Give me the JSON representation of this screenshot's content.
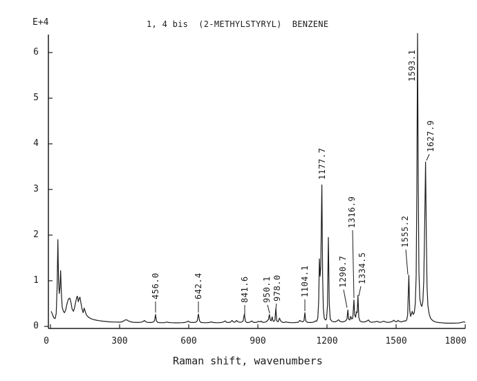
{
  "window": {
    "background": "#ffffff",
    "ink_color": "#1c1c1c"
  },
  "chart_data": {
    "type": "line",
    "title": "1, 4 bis  (2-METHYLSTYRYL)  BENZENE",
    "xlabel": "Raman shift, wavenumbers",
    "y_scale_label": "E+4",
    "xlim": [
      0,
      1810
    ],
    "ylim": [
      0,
      6.45
    ],
    "x_ticks": [
      0,
      300,
      600,
      900,
      1200,
      1500,
      1800
    ],
    "x_tick_dx": [
      -6,
      0,
      0,
      0,
      0,
      0,
      -14
    ],
    "y_ticks": [
      0,
      1,
      2,
      3,
      4,
      5,
      6
    ],
    "grid": false,
    "legend": "none",
    "peak_labels": [
      {
        "text": "456.0",
        "wn": 456.0,
        "value": 0.26,
        "dx": 0,
        "bottom": 433,
        "leader": [
          225,
          436,
          225,
          452
        ]
      },
      {
        "text": "642.4",
        "wn": 642.4,
        "value": 0.27,
        "dx": 0,
        "bottom": 433,
        "leader": [
          287,
          436,
          287,
          452
        ]
      },
      {
        "text": "841.6",
        "wn": 841.6,
        "value": 0.27,
        "dx": 0,
        "bottom": 438,
        "leader": [
          354,
          441,
          354,
          455
        ]
      },
      {
        "text": "950.1",
        "wn": 950.1,
        "value": 0.26,
        "dx": -4,
        "bottom": 438,
        "leader": [
          387,
          441,
          390,
          453
        ]
      },
      {
        "text": "978.0",
        "wn": 978.0,
        "value": 0.4,
        "dx": 2,
        "bottom": 436,
        "leader": [
          400,
          439,
          399,
          447
        ]
      },
      {
        "text": "1104.1",
        "wn": 1104.1,
        "value": 0.3,
        "dx": 0,
        "bottom": 430,
        "leader": [
          441,
          433,
          441,
          450
        ]
      },
      {
        "text": "1177.7",
        "wn": 1177.7,
        "value": 3.1,
        "dx": 0,
        "bottom": 260,
        "leader": null
      },
      {
        "text": "1290.7",
        "wn": 1290.7,
        "value": 0.36,
        "dx": -7,
        "bottom": 416,
        "leader": [
          497,
          419,
          502,
          445
        ]
      },
      {
        "text": "1316.9",
        "wn": 1316.9,
        "value": 0.58,
        "dx": -3,
        "bottom": 330,
        "leader": [
          510,
          333,
          512,
          431
        ]
      },
      {
        "text": "1334.5",
        "wn": 1334.5,
        "value": 0.68,
        "dx": 6,
        "bottom": 411,
        "leader": [
          522,
          414,
          519,
          428
        ]
      },
      {
        "text": "1555.2",
        "wn": 1555.2,
        "value": 1.12,
        "dx": -5,
        "bottom": 358,
        "leader": [
          587,
          361,
          590,
          397
        ]
      },
      {
        "text": "1593.1",
        "wn": 1593.1,
        "value": 6.42,
        "dx": -8,
        "bottom": 118,
        "leader": null
      },
      {
        "text": "1627.9",
        "wn": 1627.9,
        "value": 3.6,
        "dx": 7,
        "bottom": 220,
        "leader": [
          621,
          223,
          617,
          232
        ]
      }
    ],
    "series": [
      {
        "name": "raman-intensity",
        "color": "#1c1c1c",
        "points": [
          [
            3,
            0.33
          ],
          [
            8,
            0.27
          ],
          [
            14,
            0.19
          ],
          [
            20,
            0.17
          ],
          [
            25,
            0.28
          ],
          [
            29,
            0.9
          ],
          [
            32,
            1.9
          ],
          [
            35,
            1.0
          ],
          [
            38,
            0.72
          ],
          [
            41,
            0.85
          ],
          [
            44,
            1.22
          ],
          [
            47,
            0.75
          ],
          [
            51,
            0.42
          ],
          [
            56,
            0.33
          ],
          [
            61,
            0.3
          ],
          [
            66,
            0.36
          ],
          [
            72,
            0.5
          ],
          [
            78,
            0.6
          ],
          [
            84,
            0.62
          ],
          [
            89,
            0.52
          ],
          [
            94,
            0.38
          ],
          [
            100,
            0.33
          ],
          [
            105,
            0.42
          ],
          [
            110,
            0.55
          ],
          [
            114,
            0.64
          ],
          [
            117,
            0.66
          ],
          [
            121,
            0.54
          ],
          [
            125,
            0.62
          ],
          [
            128,
            0.64
          ],
          [
            132,
            0.52
          ],
          [
            137,
            0.38
          ],
          [
            142,
            0.3
          ],
          [
            146,
            0.4
          ],
          [
            150,
            0.34
          ],
          [
            156,
            0.25
          ],
          [
            165,
            0.2
          ],
          [
            172,
            0.18
          ],
          [
            180,
            0.16
          ],
          [
            190,
            0.145
          ],
          [
            200,
            0.135
          ],
          [
            212,
            0.125
          ],
          [
            225,
            0.115
          ],
          [
            240,
            0.108
          ],
          [
            255,
            0.1
          ],
          [
            270,
            0.095
          ],
          [
            285,
            0.095
          ],
          [
            300,
            0.092
          ],
          [
            312,
            0.1
          ],
          [
            322,
            0.135
          ],
          [
            330,
            0.145
          ],
          [
            338,
            0.12
          ],
          [
            348,
            0.1
          ],
          [
            360,
            0.09
          ],
          [
            375,
            0.085
          ],
          [
            390,
            0.09
          ],
          [
            400,
            0.1
          ],
          [
            408,
            0.13
          ],
          [
            413,
            0.1
          ],
          [
            425,
            0.085
          ],
          [
            438,
            0.085
          ],
          [
            448,
            0.1
          ],
          [
            452,
            0.13
          ],
          [
            456,
            0.26
          ],
          [
            460,
            0.12
          ],
          [
            466,
            0.085
          ],
          [
            480,
            0.08
          ],
          [
            495,
            0.08
          ],
          [
            505,
            0.095
          ],
          [
            512,
            0.085
          ],
          [
            525,
            0.08
          ],
          [
            540,
            0.078
          ],
          [
            555,
            0.078
          ],
          [
            570,
            0.08
          ],
          [
            582,
            0.085
          ],
          [
            592,
            0.1
          ],
          [
            598,
            0.115
          ],
          [
            605,
            0.09
          ],
          [
            618,
            0.085
          ],
          [
            630,
            0.09
          ],
          [
            637,
            0.12
          ],
          [
            642,
            0.27
          ],
          [
            647,
            0.12
          ],
          [
            653,
            0.085
          ],
          [
            665,
            0.08
          ],
          [
            678,
            0.08
          ],
          [
            690,
            0.085
          ],
          [
            698,
            0.1
          ],
          [
            705,
            0.085
          ],
          [
            718,
            0.08
          ],
          [
            730,
            0.08
          ],
          [
            742,
            0.085
          ],
          [
            752,
            0.1
          ],
          [
            758,
            0.12
          ],
          [
            764,
            0.09
          ],
          [
            772,
            0.085
          ],
          [
            780,
            0.09
          ],
          [
            788,
            0.13
          ],
          [
            793,
            0.1
          ],
          [
            800,
            0.09
          ],
          [
            808,
            0.13
          ],
          [
            814,
            0.1
          ],
          [
            822,
            0.09
          ],
          [
            830,
            0.095
          ],
          [
            836,
            0.12
          ],
          [
            841.6,
            0.27
          ],
          [
            846,
            0.11
          ],
          [
            852,
            0.085
          ],
          [
            860,
            0.085
          ],
          [
            868,
            0.1
          ],
          [
            874,
            0.12
          ],
          [
            880,
            0.09
          ],
          [
            888,
            0.085
          ],
          [
            895,
            0.09
          ],
          [
            902,
            0.11
          ],
          [
            908,
            0.1
          ],
          [
            915,
            0.115
          ],
          [
            920,
            0.09
          ],
          [
            928,
            0.09
          ],
          [
            936,
            0.1
          ],
          [
            942,
            0.13
          ],
          [
            946,
            0.15
          ],
          [
            950.1,
            0.26
          ],
          [
            954,
            0.14
          ],
          [
            958,
            0.12
          ],
          [
            962,
            0.21
          ],
          [
            966,
            0.12
          ],
          [
            970,
            0.11
          ],
          [
            974,
            0.14
          ],
          [
            978,
            0.4
          ],
          [
            982,
            0.12
          ],
          [
            988,
            0.1
          ],
          [
            994,
            0.18
          ],
          [
            999,
            0.12
          ],
          [
            1006,
            0.09
          ],
          [
            1014,
            0.085
          ],
          [
            1022,
            0.1
          ],
          [
            1028,
            0.09
          ],
          [
            1036,
            0.085
          ],
          [
            1045,
            0.08
          ],
          [
            1055,
            0.08
          ],
          [
            1065,
            0.085
          ],
          [
            1075,
            0.09
          ],
          [
            1082,
            0.13
          ],
          [
            1088,
            0.11
          ],
          [
            1094,
            0.1
          ],
          [
            1100,
            0.12
          ],
          [
            1104.1,
            0.3
          ],
          [
            1108,
            0.12
          ],
          [
            1114,
            0.09
          ],
          [
            1122,
            0.085
          ],
          [
            1130,
            0.085
          ],
          [
            1138,
            0.09
          ],
          [
            1145,
            0.1
          ],
          [
            1150,
            0.12
          ],
          [
            1155,
            0.11
          ],
          [
            1160,
            0.18
          ],
          [
            1164,
            0.55
          ],
          [
            1167,
            1.48
          ],
          [
            1170,
            1.1
          ],
          [
            1173,
            1.3
          ],
          [
            1177.7,
            3.1
          ],
          [
            1181,
            1.1
          ],
          [
            1184,
            0.4
          ],
          [
            1188,
            0.18
          ],
          [
            1193,
            0.14
          ],
          [
            1198,
            0.16
          ],
          [
            1202,
            0.45
          ],
          [
            1206,
            1.95
          ],
          [
            1210,
            0.5
          ],
          [
            1214,
            0.16
          ],
          [
            1220,
            0.12
          ],
          [
            1228,
            0.1
          ],
          [
            1236,
            0.1
          ],
          [
            1244,
            0.12
          ],
          [
            1250,
            0.145
          ],
          [
            1256,
            0.11
          ],
          [
            1263,
            0.1
          ],
          [
            1270,
            0.1
          ],
          [
            1277,
            0.11
          ],
          [
            1283,
            0.13
          ],
          [
            1287,
            0.17
          ],
          [
            1290.7,
            0.36
          ],
          [
            1294,
            0.16
          ],
          [
            1299,
            0.14
          ],
          [
            1303,
            0.22
          ],
          [
            1307,
            0.16
          ],
          [
            1312,
            0.18
          ],
          [
            1316.9,
            0.58
          ],
          [
            1320,
            0.25
          ],
          [
            1324,
            0.2
          ],
          [
            1328,
            0.32
          ],
          [
            1331,
            0.3
          ],
          [
            1334.5,
            0.68
          ],
          [
            1338,
            0.2
          ],
          [
            1343,
            0.12
          ],
          [
            1350,
            0.1
          ],
          [
            1358,
            0.095
          ],
          [
            1366,
            0.1
          ],
          [
            1374,
            0.12
          ],
          [
            1380,
            0.14
          ],
          [
            1386,
            0.1
          ],
          [
            1394,
            0.09
          ],
          [
            1402,
            0.095
          ],
          [
            1410,
            0.1
          ],
          [
            1418,
            0.11
          ],
          [
            1424,
            0.095
          ],
          [
            1432,
            0.09
          ],
          [
            1440,
            0.1
          ],
          [
            1446,
            0.115
          ],
          [
            1452,
            0.1
          ],
          [
            1460,
            0.09
          ],
          [
            1468,
            0.09
          ],
          [
            1476,
            0.095
          ],
          [
            1484,
            0.11
          ],
          [
            1490,
            0.135
          ],
          [
            1495,
            0.11
          ],
          [
            1502,
            0.1
          ],
          [
            1508,
            0.13
          ],
          [
            1514,
            0.11
          ],
          [
            1520,
            0.1
          ],
          [
            1527,
            0.1
          ],
          [
            1534,
            0.12
          ],
          [
            1540,
            0.115
          ],
          [
            1546,
            0.14
          ],
          [
            1550,
            0.25
          ],
          [
            1555.2,
            1.12
          ],
          [
            1559,
            0.35
          ],
          [
            1563,
            0.22
          ],
          [
            1567,
            0.28
          ],
          [
            1570,
            0.33
          ],
          [
            1574,
            0.26
          ],
          [
            1579,
            0.3
          ],
          [
            1583,
            0.5
          ],
          [
            1587,
            1.1
          ],
          [
            1590,
            3.0
          ],
          [
            1593.1,
            6.42
          ],
          [
            1596,
            3.2
          ],
          [
            1599,
            1.2
          ],
          [
            1603,
            0.6
          ],
          [
            1608,
            0.47
          ],
          [
            1612,
            0.44
          ],
          [
            1616,
            0.55
          ],
          [
            1620,
            1.0
          ],
          [
            1624,
            2.2
          ],
          [
            1627.9,
            3.6
          ],
          [
            1631,
            2.0
          ],
          [
            1634,
            0.9
          ],
          [
            1638,
            0.45
          ],
          [
            1643,
            0.28
          ],
          [
            1649,
            0.18
          ],
          [
            1656,
            0.14
          ],
          [
            1664,
            0.11
          ],
          [
            1672,
            0.095
          ],
          [
            1682,
            0.085
          ],
          [
            1694,
            0.08
          ],
          [
            1708,
            0.075
          ],
          [
            1722,
            0.07
          ],
          [
            1736,
            0.07
          ],
          [
            1750,
            0.07
          ],
          [
            1762,
            0.072
          ],
          [
            1774,
            0.075
          ],
          [
            1786,
            0.09
          ],
          [
            1794,
            0.1
          ],
          [
            1800,
            0.085
          ]
        ]
      }
    ]
  }
}
